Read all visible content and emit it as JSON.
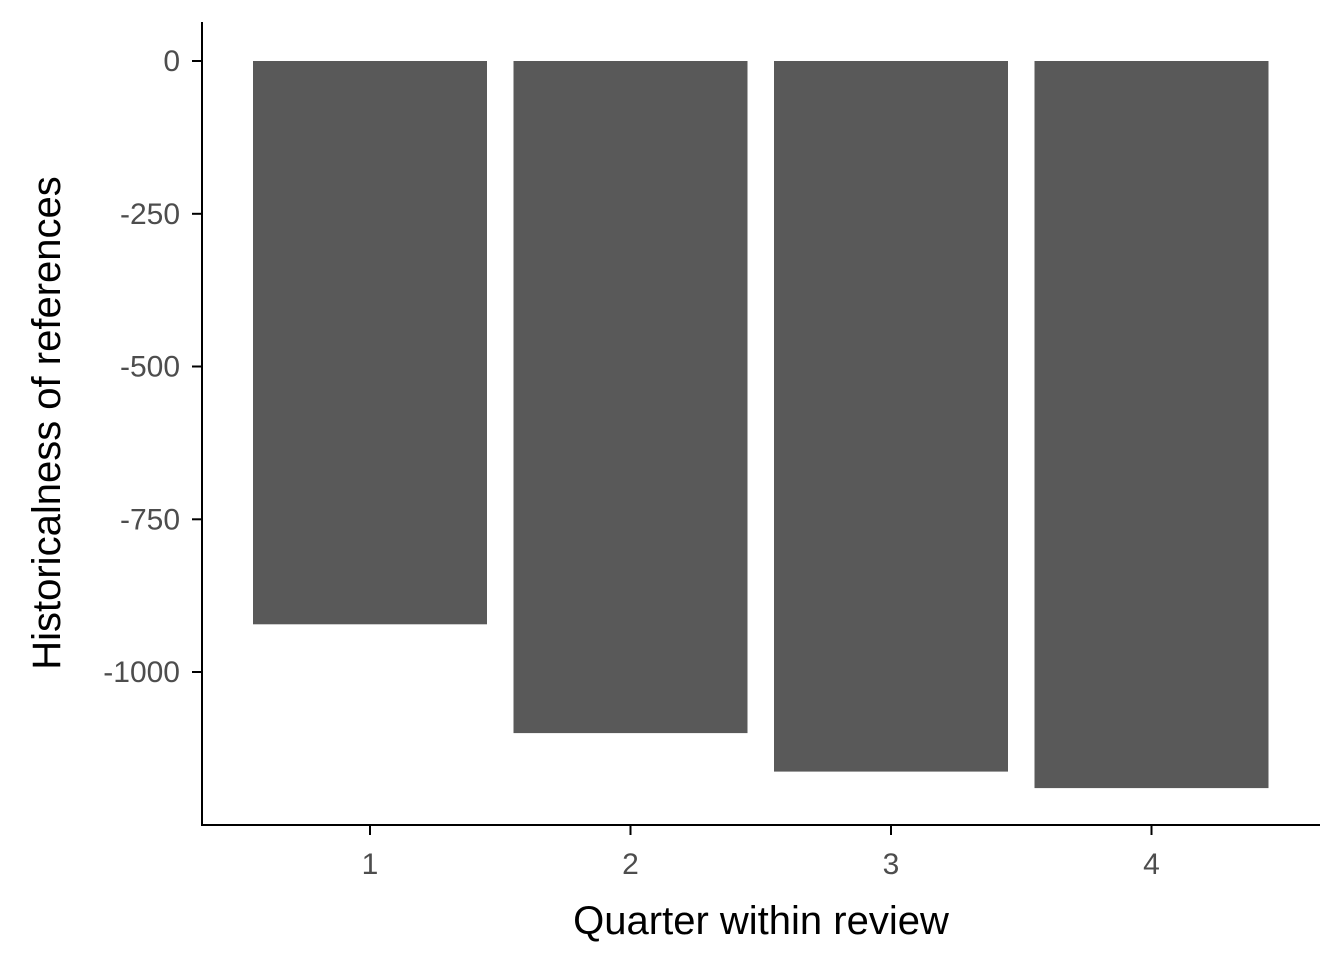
{
  "chart_data": {
    "type": "bar",
    "title": "",
    "xlabel": "Quarter within review",
    "ylabel": "Historicalness of references",
    "categories": [
      "1",
      "2",
      "3",
      "4"
    ],
    "values": [
      -922,
      -1100,
      -1163,
      -1190
    ],
    "ylim": [
      -1250,
      60
    ],
    "yticks": [
      0,
      -250,
      -500,
      -750,
      -1000
    ],
    "ytick_labels": [
      "0",
      "-250",
      "-500",
      "-750",
      "-1000"
    ],
    "grid": false,
    "legend": "none",
    "bar_color": "#595959"
  }
}
